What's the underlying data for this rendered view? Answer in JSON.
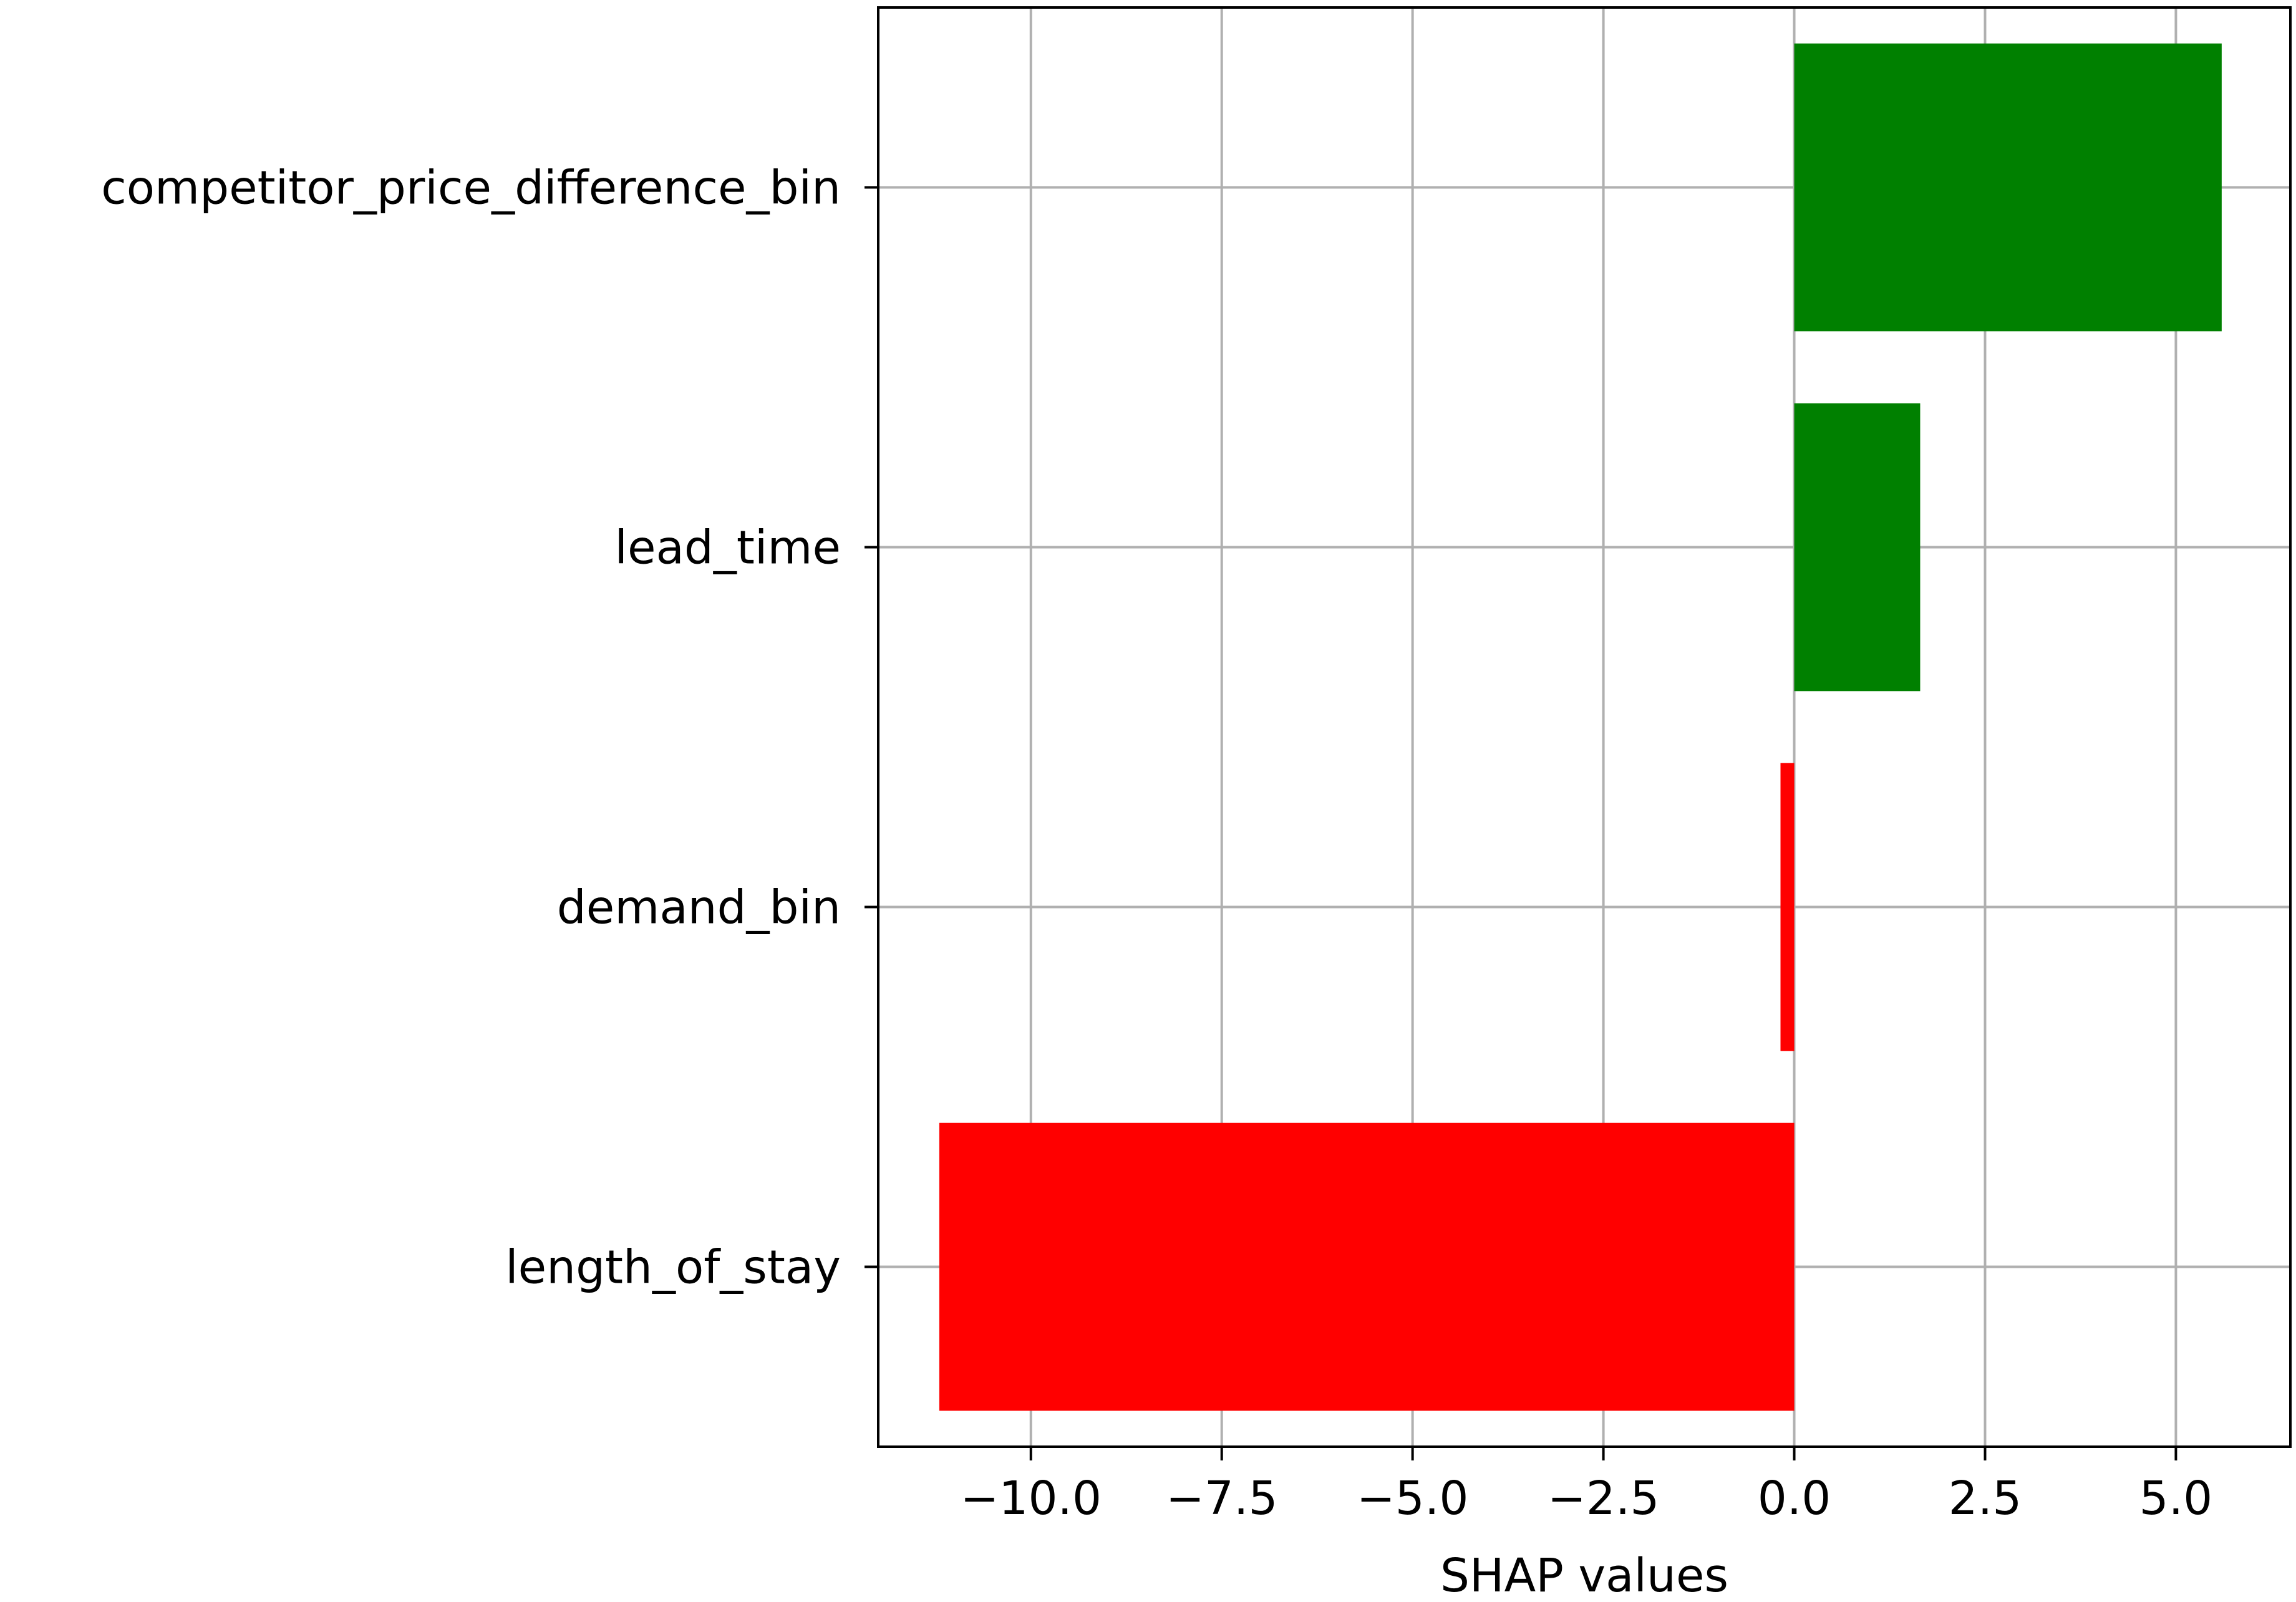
{
  "chart_data": {
    "type": "bar",
    "orientation": "horizontal",
    "categories": [
      "competitor_price_difference_bin",
      "lead_time",
      "demand_bin",
      "length_of_stay"
    ],
    "values": [
      5.6,
      1.65,
      -0.18,
      -11.2
    ],
    "bar_colors": [
      "#008000",
      "#008000",
      "#ff0000",
      "#ff0000"
    ],
    "positive_color": "#008000",
    "negative_color": "#ff0000",
    "xlabel": "SHAP values",
    "ylabel": "",
    "title": "",
    "xlim": [
      -12.0,
      6.5
    ],
    "xticks": [
      -10.0,
      -7.5,
      -5.0,
      -2.5,
      0.0,
      2.5,
      5.0
    ],
    "xtick_labels": [
      "−10.0",
      "−7.5",
      "−5.0",
      "−2.5",
      "0.0",
      "2.5",
      "5.0"
    ],
    "grid": true,
    "legend": "none"
  }
}
